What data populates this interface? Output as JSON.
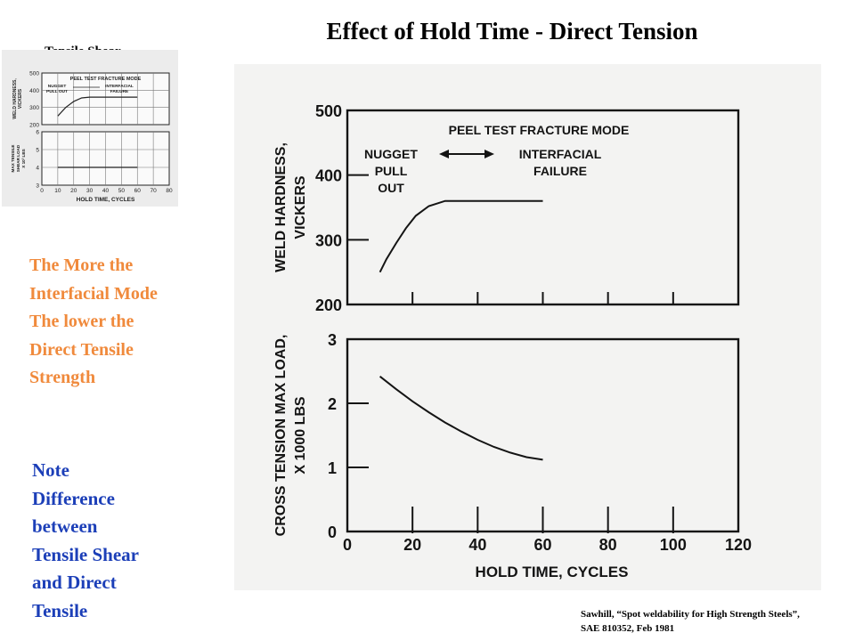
{
  "title": "Effect of Hold Time - Direct Tension",
  "thumbnail_label": "Tensile Shear",
  "orange_note": "The More the\nInterfacial Mode\nThe lower the\nDirect Tensile\nStrength",
  "blue_note": "Note\nDifference\nbetween\nTensile Shear\nand Direct\nTensile",
  "citation": "Sawhill, “Spot weldability for High Strength Steels”,\nSAE 810352, Feb 1981",
  "colors": {
    "orange_text": "#f08a3c",
    "blue_text": "#1c3fb8",
    "plot_background": "#f3f3f2"
  },
  "chart_data": [
    {
      "type": "line",
      "panel": "weld-hardness",
      "title": "PEEL TEST FRACTURE MODE",
      "annotations": [
        "NUGGET\nPULL\nOUT",
        "INTERFACIAL\nFAILURE"
      ],
      "xlabel": "",
      "ylabel": "WELD HARDNESS,\nVICKERS",
      "xlim": [
        0,
        120
      ],
      "ylim": [
        200,
        500
      ],
      "x_ticks": [
        0,
        20,
        40,
        60,
        80,
        100,
        120
      ],
      "y_ticks": [
        200,
        300,
        400,
        500
      ],
      "y_tick_labels": [
        "200",
        "300",
        "400",
        "500"
      ],
      "grid": false,
      "series": [
        {
          "x": [
            10,
            12,
            15,
            18,
            21,
            25,
            30,
            35,
            40,
            45,
            50,
            55,
            60
          ],
          "y": [
            250,
            270,
            295,
            318,
            337,
            352,
            360,
            360,
            360,
            360,
            360,
            360,
            360
          ]
        }
      ]
    },
    {
      "type": "line",
      "panel": "cross-tension",
      "title": "",
      "xlabel": "HOLD TIME, CYCLES",
      "ylabel": "CROSS TENSION MAX LOAD,\nX 1000 LBS",
      "xlim": [
        0,
        120
      ],
      "ylim": [
        0,
        3
      ],
      "x_ticks": [
        0,
        20,
        40,
        60,
        80,
        100,
        120
      ],
      "x_tick_labels": [
        "0",
        "20",
        "40",
        "60",
        "80",
        "100",
        "120"
      ],
      "y_ticks": [
        0,
        1,
        2,
        3
      ],
      "y_tick_labels": [
        "0",
        "1",
        "2",
        "3"
      ],
      "grid": false,
      "series": [
        {
          "x": [
            10,
            15,
            20,
            25,
            30,
            35,
            40,
            45,
            50,
            55,
            60
          ],
          "y": [
            2.42,
            2.22,
            2.03,
            1.86,
            1.7,
            1.56,
            1.43,
            1.32,
            1.23,
            1.16,
            1.12
          ]
        }
      ]
    },
    {
      "type": "line",
      "panel": "tensile-shear-thumbnail",
      "title": "PEEL TEST FRACTURE MODE",
      "annotations": [
        "NUGGET\nPULL OUT",
        "INTERFACIAL\nFAILURE"
      ],
      "xlabel": "HOLD TIME, CYCLES",
      "ylabel_top": "WELD HARDNESS,\nVICKERS",
      "ylabel_bottom": "MAX TENSILE\nSHEAR LOAD\nX 10³ LBS",
      "xlim": [
        0,
        80
      ],
      "x_ticks": [
        0,
        10,
        20,
        30,
        40,
        50,
        60,
        70,
        80
      ],
      "x_tick_labels": [
        "0",
        "10",
        "20",
        "30",
        "40",
        "50",
        "60",
        "70",
        "80"
      ],
      "top_ylim": [
        200,
        500
      ],
      "top_y_tick_labels": [
        "200",
        "300",
        "400",
        "500"
      ],
      "bottom_ylim": [
        3,
        6
      ],
      "bottom_y_tick_labels": [
        "3",
        "4",
        "5",
        "6"
      ],
      "grid": true,
      "series": [
        {
          "name": "hardness",
          "x": [
            10,
            15,
            20,
            25,
            30,
            40,
            50,
            60
          ],
          "y": [
            250,
            300,
            335,
            355,
            360,
            360,
            360,
            360
          ]
        },
        {
          "name": "tensile shear",
          "x": [
            10,
            20,
            30,
            40,
            50,
            60
          ],
          "y": [
            4,
            4,
            4,
            4,
            4,
            4
          ]
        }
      ]
    }
  ]
}
